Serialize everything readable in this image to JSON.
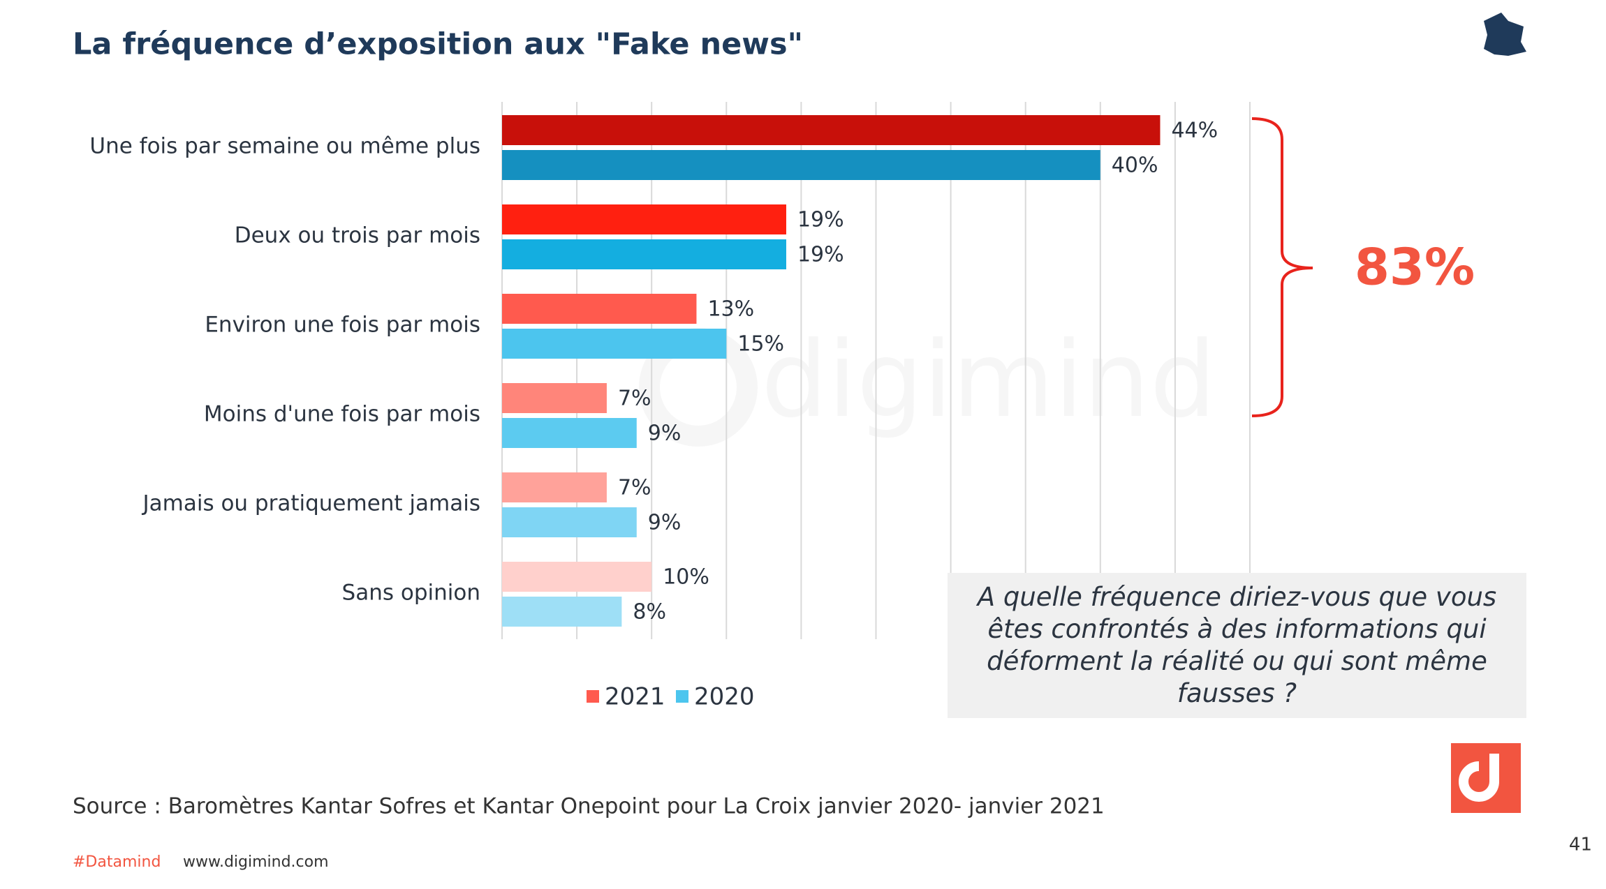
{
  "chart_data": {
    "type": "hbar",
    "title": "La fréquence d’exposition aux \"Fake news\"",
    "categories": [
      "Une fois par semaine ou même plus",
      "Deux ou trois par mois",
      "Environ une fois par mois",
      "Moins d'une fois par mois",
      "Jamais ou pratiquement jamais",
      "Sans opinion"
    ],
    "series": [
      {
        "name": "2021",
        "color": "#ff5a4e",
        "bar_colors": [
          "#c8100a",
          "#ff2010",
          "#ff5a4e",
          "#ff857a",
          "#ffa29a",
          "#ffd0cc"
        ],
        "values": [
          44,
          19,
          13,
          7,
          7,
          10
        ],
        "value_labels": [
          "44%",
          "19%",
          "13%",
          "7%",
          "7%",
          "10%"
        ]
      },
      {
        "name": "2020",
        "color": "#4cc5ee",
        "bar_colors": [
          "#1590c0",
          "#14aee0",
          "#4cc5ee",
          "#5ccbf0",
          "#7fd5f4",
          "#9edff6"
        ],
        "values": [
          40,
          19,
          15,
          9,
          9,
          8
        ],
        "value_labels": [
          "40%",
          "19%",
          "15%",
          "9%",
          "9%",
          "8%"
        ]
      }
    ],
    "xlim": [
      0,
      50
    ],
    "xticks": [
      0,
      5,
      10,
      15,
      20,
      25,
      30,
      35,
      40,
      45,
      50
    ],
    "grid": true,
    "annotation": "83%",
    "question": "A quelle fréquence diriez-vous que vous êtes confrontés  à des informations qui déforment la réalité ou qui sont même fausses ?",
    "source": "Source : Baromètres Kantar Sofres  et Kantar Onepoint pour La Croix  janvier 2020- janvier 2021",
    "watermark": "digimind"
  },
  "footer": {
    "hashtag": "#Datamind",
    "website": "www.digimind.com",
    "page_number": "41"
  }
}
